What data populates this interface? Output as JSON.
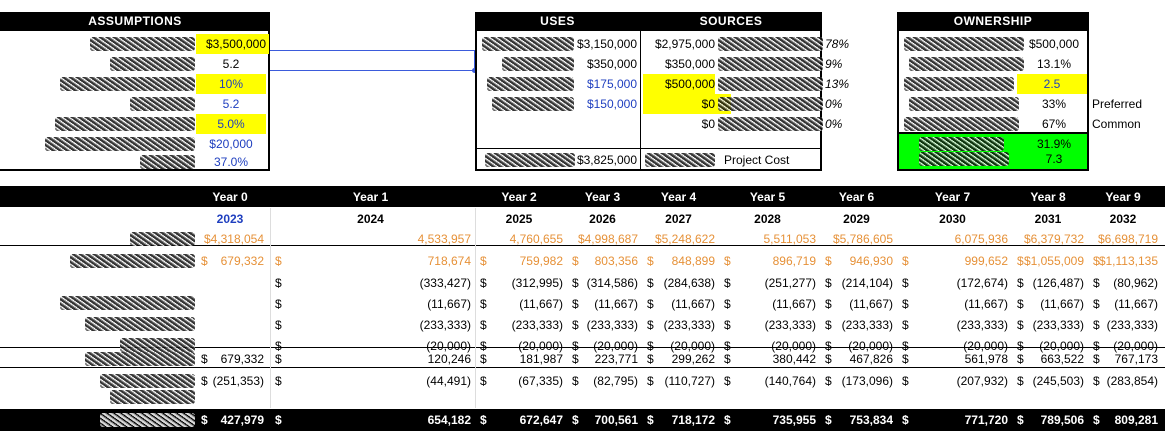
{
  "assumptions": {
    "title": "ASSUMPTIONS",
    "values": [
      "$3,500,000",
      "5.2",
      "10%",
      "5.2",
      "5.0%",
      "$20,000",
      "37.0%"
    ]
  },
  "uses": {
    "title": "USES",
    "values": [
      "$3,150,000",
      "$350,000",
      "$175,000",
      "$150,000"
    ],
    "total": "$3,825,000"
  },
  "sources": {
    "title": "SOURCES",
    "values": [
      "$2,975,000",
      "$350,000",
      "$500,000",
      "$0",
      "$0"
    ],
    "percents": [
      "78%",
      "9%",
      "13%",
      "0%",
      "0%"
    ],
    "total_label": "Project Cost"
  },
  "ownership": {
    "title": "OWNERSHIP",
    "values": [
      "$500,000",
      "13.1%",
      "2.5",
      "33%",
      "67%",
      "31.9%",
      "7.3"
    ],
    "side_labels": [
      "Preferred",
      "Common"
    ]
  },
  "financials": {
    "years": [
      "Year 0",
      "Year 1",
      "Year 2",
      "Year 3",
      "Year 4",
      "Year 5",
      "Year 6",
      "Year 7",
      "Year 8",
      "Year 9"
    ],
    "calendar": [
      "2023",
      "2024",
      "2025",
      "2026",
      "2027",
      "2028",
      "2029",
      "2030",
      "2031",
      "2032"
    ],
    "revenue": [
      "$4,318,054",
      "4,533,957",
      "4,760,655",
      "$4,998,687",
      "$5,248,622",
      "5,511,053",
      "$5,786,605",
      "6,075,936",
      "$6,379,732",
      "$6,698,719"
    ],
    "ebitda": [
      "679,332",
      "718,674",
      "759,982",
      "803,356",
      "848,899",
      "896,719",
      "946,930",
      "999,652",
      "$1,055,009",
      "$1,113,135"
    ],
    "row3": [
      "",
      "(333,427)",
      "(312,995)",
      "(314,586)",
      "(284,638)",
      "(251,277)",
      "(214,104)",
      "(172,674)",
      "(126,487)",
      "(80,962)"
    ],
    "row4": [
      "",
      "(11,667)",
      "(11,667)",
      "(11,667)",
      "(11,667)",
      "(11,667)",
      "(11,667)",
      "(11,667)",
      "(11,667)",
      "(11,667)"
    ],
    "row5": [
      "",
      "(233,333)",
      "(233,333)",
      "(233,333)",
      "(233,333)",
      "(233,333)",
      "(233,333)",
      "(233,333)",
      "(233,333)",
      "(233,333)"
    ],
    "row6": [
      "",
      "(20,000)",
      "(20,000)",
      "(20,000)",
      "(20,000)",
      "(20,000)",
      "(20,000)",
      "(20,000)",
      "(20,000)",
      "(20,000)"
    ],
    "taxable": [
      "679,332",
      "120,246",
      "181,987",
      "223,771",
      "299,262",
      "380,442",
      "467,826",
      "561,978",
      "663,522",
      "767,173"
    ],
    "tax": [
      "(251,353)",
      "(44,491)",
      "(67,335)",
      "(82,795)",
      "(110,727)",
      "(140,764)",
      "(173,096)",
      "(207,932)",
      "(245,503)",
      "(283,854)"
    ],
    "final": [
      "427,979",
      "654,182",
      "672,647",
      "700,561",
      "718,172",
      "735,955",
      "753,834",
      "771,720",
      "789,506",
      "809,281"
    ],
    "dollar": "$"
  }
}
